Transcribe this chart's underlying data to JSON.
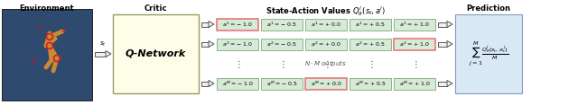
{
  "title_env": "Environment",
  "title_critic": "Critic",
  "title_pred": "Prediction",
  "q_network_label": "Q-Network",
  "highlight_idxs": [
    0,
    4,
    2
  ],
  "value_labels": [
    [
      "$a^1 = -1.0$",
      "$a^1 = -0.5$",
      "$a^1 = +0.0$",
      "$a^1 = +0.5$",
      "$a^1 = +1.0$"
    ],
    [
      "$a^2 = -1.0$",
      "$a^2 = -0.5$",
      "$a^2 = +0.0$",
      "$a^2 = +0.5$",
      "$a^2 = +1.0$"
    ],
    [
      "$a^M = -1.0$",
      "$a^M = -0.5$",
      "$a^M = +0.0$",
      "$a^M = +0.5$",
      "$a^M = +1.0$"
    ]
  ],
  "colors": {
    "env_bg": "#2e4a6e",
    "qnet_bg": "#fefee8",
    "qnet_border": "#999966",
    "cell_green_bg": "#d6ead6",
    "cell_green_border": "#7aaa7a",
    "cell_pink_border": "#e87878",
    "cell_gray_bg": "#e2e2e2",
    "cell_gray_border": "#999999",
    "pred_bg": "#d8e8f5",
    "pred_border": "#8899bb",
    "title_color": "#000000",
    "background": "#ffffff",
    "manikin": "#cc8833",
    "joint_red": "#cc2222",
    "arrow_face": "#f0f0f0",
    "arrow_edge": "#555555"
  },
  "figsize": [
    6.4,
    1.17
  ],
  "dpi": 100
}
